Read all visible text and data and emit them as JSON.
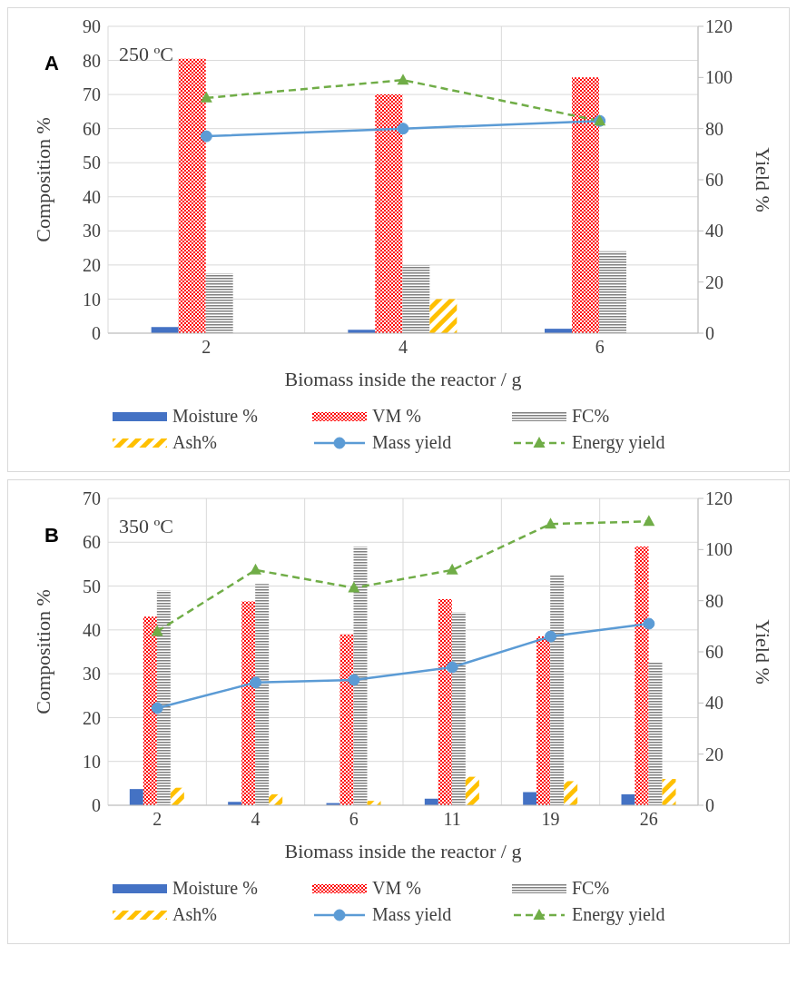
{
  "chart_data": [
    {
      "type": "bar",
      "annotations": [
        "A",
        "250 ºC"
      ],
      "categories": [
        "2",
        "4",
        "6"
      ],
      "xlabel": "Biomass inside the reactor / g",
      "ylabel": "Composition %",
      "y2label": "Yield %",
      "ylim": [
        0,
        90
      ],
      "yticks": [
        0,
        10,
        20,
        30,
        40,
        50,
        60,
        70,
        80,
        90
      ],
      "y2lim": [
        0,
        120
      ],
      "y2ticks": [
        0,
        20,
        40,
        60,
        80,
        100,
        120
      ],
      "grid": true,
      "legend": "bottom",
      "series": [
        {
          "name": "Moisture %",
          "color": "#4472c4",
          "values": [
            1.8,
            1.0,
            1.3
          ]
        },
        {
          "name": "VM %",
          "color": "#ff0000",
          "values": [
            80.5,
            70,
            75
          ]
        },
        {
          "name": "FC%",
          "color": "#808080",
          "values": [
            17.5,
            20,
            24
          ]
        },
        {
          "name": "Ash%",
          "color": "#ffc000",
          "values": [
            0,
            10,
            0
          ]
        },
        {
          "name": "Mass yield",
          "type": "line",
          "axis": "y2",
          "color": "#5b9bd5",
          "marker": "circle",
          "line_style": "solid",
          "values": [
            77,
            80,
            83
          ]
        },
        {
          "name": "Energy yield",
          "type": "line",
          "axis": "y2",
          "color": "#70ad47",
          "marker": "triangle",
          "line_style": "dashed",
          "values": [
            92,
            99,
            83
          ]
        }
      ]
    },
    {
      "type": "bar",
      "annotations": [
        "B",
        "350 ºC"
      ],
      "categories": [
        "2",
        "4",
        "6",
        "11",
        "19",
        "26"
      ],
      "xlabel": "Biomass inside the reactor / g",
      "ylabel": "Composition %",
      "y2label": "Yield %",
      "ylim": [
        0,
        70
      ],
      "yticks": [
        0,
        10,
        20,
        30,
        40,
        50,
        60,
        70
      ],
      "y2lim": [
        0,
        120
      ],
      "y2ticks": [
        0,
        20,
        40,
        60,
        80,
        100,
        120
      ],
      "grid": true,
      "legend": "bottom",
      "series": [
        {
          "name": "Moisture %",
          "color": "#4472c4",
          "values": [
            3.7,
            0.8,
            0.5,
            1.5,
            3,
            2.5
          ]
        },
        {
          "name": "VM %",
          "color": "#ff0000",
          "values": [
            43,
            46.5,
            39,
            47,
            38.5,
            59
          ]
        },
        {
          "name": "FC%",
          "color": "#808080",
          "values": [
            49,
            50.5,
            59,
            44,
            52.5,
            32.5
          ]
        },
        {
          "name": "Ash%",
          "color": "#ffc000",
          "values": [
            4,
            2.5,
            1,
            6.5,
            5.5,
            6
          ]
        },
        {
          "name": "Mass yield",
          "type": "line",
          "axis": "y2",
          "color": "#5b9bd5",
          "marker": "circle",
          "line_style": "solid",
          "values": [
            38,
            48,
            49,
            54,
            66,
            71
          ]
        },
        {
          "name": "Energy yield",
          "type": "line",
          "axis": "y2",
          "color": "#70ad47",
          "marker": "triangle",
          "line_style": "dashed",
          "values": [
            68,
            92,
            85,
            92,
            110,
            111
          ]
        }
      ]
    }
  ]
}
